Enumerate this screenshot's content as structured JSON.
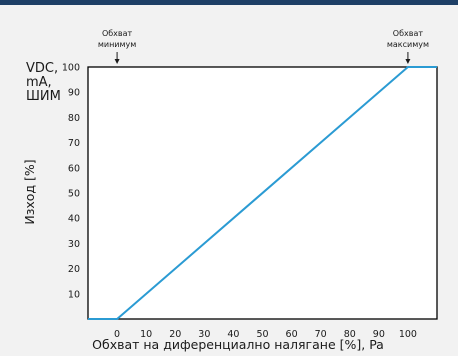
{
  "chart_data": {
    "type": "line",
    "title": "",
    "xlabel": "Обхват на диференциално налягане [%], Pa",
    "ylabel": "Изход [%]",
    "ylabel_side": [
      "VDC,",
      "mA,",
      "ШИМ"
    ],
    "xlim": [
      -10,
      110
    ],
    "ylim": [
      0,
      100
    ],
    "x_ticks": [
      0,
      10,
      20,
      30,
      40,
      50,
      60,
      70,
      80,
      90,
      100
    ],
    "y_ticks": [
      10,
      20,
      30,
      40,
      50,
      60,
      70,
      80,
      90,
      100
    ],
    "grid": false,
    "series": [
      {
        "x": [
          -10,
          0,
          100,
          110
        ],
        "y": [
          0,
          0,
          100,
          100
        ]
      }
    ],
    "annotations": [
      {
        "lines": [
          "Обхват",
          "минимум"
        ],
        "x": 0
      },
      {
        "lines": [
          "Обхват",
          "максимум"
        ],
        "x": 100
      }
    ],
    "colors": {
      "line": "#2b9bd3",
      "frame": "#000000",
      "topbar": "#1e3f66"
    }
  }
}
